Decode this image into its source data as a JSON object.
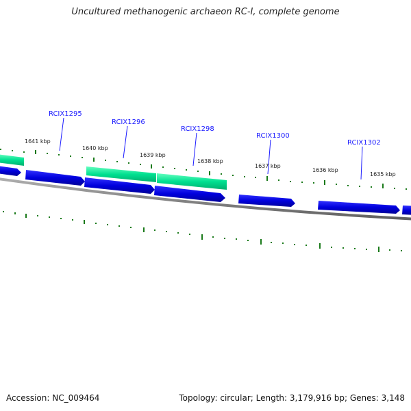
{
  "title": "Uncultured methanogenic archaeon RC-I, complete genome",
  "footer": {
    "accession": "Accession: NC_009464",
    "summary": "Topology: circular; Length: 3,179,916 bp; Genes: 3,148"
  },
  "colors": {
    "forward_gene": "#00e090",
    "reverse_gene": "#0000dd",
    "backbone": "#808080",
    "tick": "#1a7a1a",
    "label": "#1a1aff"
  },
  "kbp_labels": [
    "1641 kbp",
    "1640 kbp",
    "1639 kbp",
    "1638 kbp",
    "1637 kbp",
    "1636 kbp",
    "1635 kbp"
  ],
  "gene_labels": [
    "RCIX1295",
    "RCIX1296",
    "RCIX1298",
    "RCIX1300",
    "RCIX1302"
  ]
}
